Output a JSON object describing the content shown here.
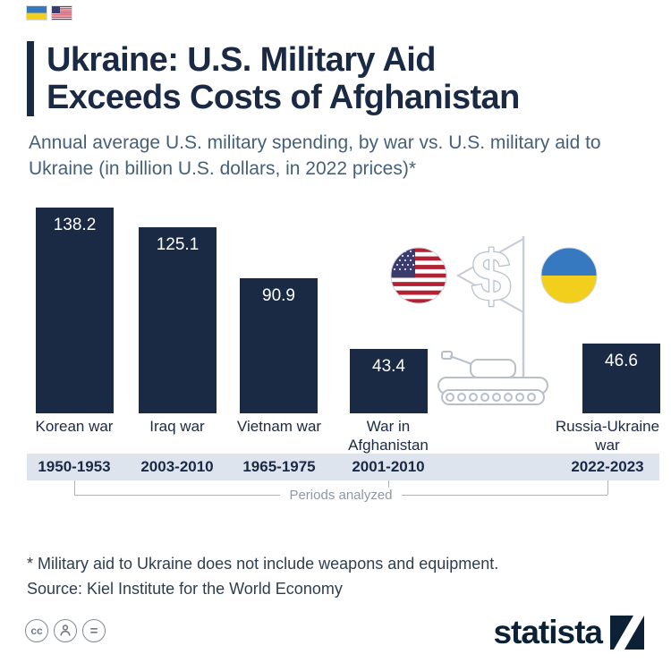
{
  "brand": {
    "name": "statista"
  },
  "header": {
    "title_line1": "Ukraine: U.S. Military Aid",
    "title_line2": "Exceeds Costs of Afghanistan",
    "subtitle": "Annual average U.S. military spending, by war vs. U.S. military aid to Ukraine (in billion U.S. dollars, in 2022 prices)*"
  },
  "chart_data": {
    "type": "bar",
    "title": "Annual average U.S. military spending, by war vs. U.S. military aid to Ukraine",
    "unit": "billion U.S. dollars, 2022 prices",
    "categories": [
      "Korean war",
      "Iraq war",
      "Vietnam war",
      "War in Afghanistan",
      "Russia-Ukraine war"
    ],
    "values": [
      138.2,
      125.1,
      90.9,
      43.4,
      46.6
    ],
    "periods": [
      "1950-1953",
      "2003-2010",
      "1965-1975",
      "2001-2010",
      "2022-2023"
    ],
    "periods_label": "Periods analyzed",
    "ylim": [
      0,
      140
    ],
    "bar_color": "#1b2a44",
    "grid": false,
    "legend_position": "none"
  },
  "illustration": {
    "dollar_sign": "$",
    "left_roundel": "us-flag",
    "right_roundel": "ukraine-flag",
    "vehicle": "tank"
  },
  "footer": {
    "footnote": "* Military aid to Ukraine does not include weapons and equipment.",
    "source": "Source: Kiel Institute for the World Economy",
    "license": {
      "cc": "cc",
      "attribution": "person",
      "equals": "="
    }
  },
  "colors": {
    "navy": "#1b2a44",
    "band": "#dde4ee",
    "subtitle_blue": "#46607a",
    "line_gray": "#aab4bf",
    "us_red": "#b22234",
    "us_blue": "#3c3b6e",
    "ua_blue": "#3779c0",
    "ua_yellow": "#f2cf1c"
  }
}
